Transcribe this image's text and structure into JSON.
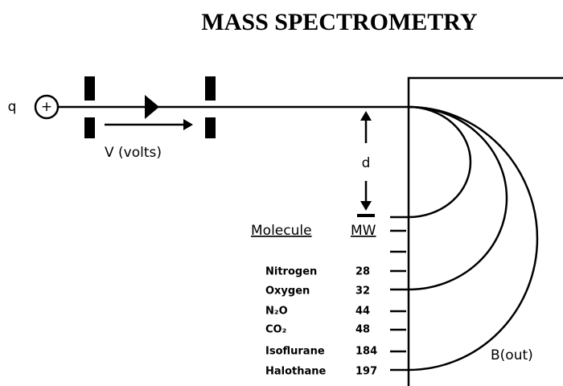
{
  "title": "MASS SPECTROMETRY",
  "particle": {
    "charge_label": "q",
    "sign": "+"
  },
  "voltage_label": "V (volts)",
  "distance_label": "d",
  "field_label": "B(out)",
  "table": {
    "header": [
      "Molecule",
      "MW"
    ],
    "rows": [
      [
        "Nitrogen",
        "28"
      ],
      [
        "Oxygen",
        "32"
      ],
      [
        "N₂O",
        "44"
      ],
      [
        "CO₂",
        "48"
      ],
      [
        "Isoflurane",
        "184"
      ],
      [
        "Halothane",
        "197"
      ]
    ]
  }
}
